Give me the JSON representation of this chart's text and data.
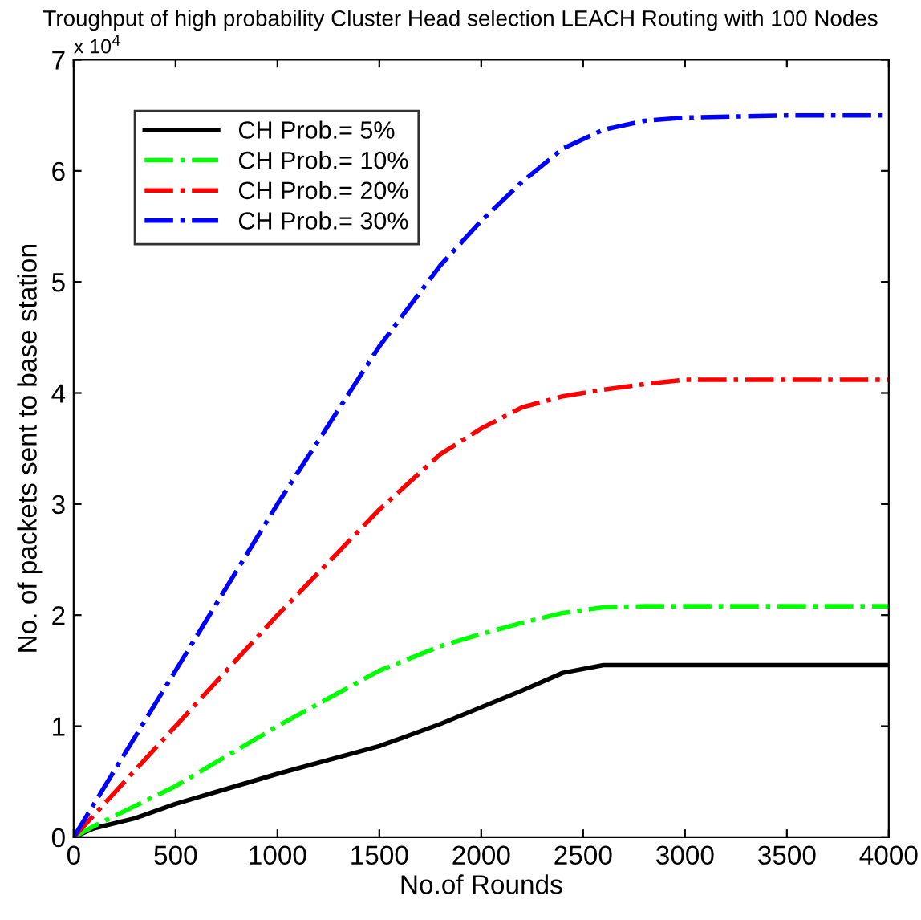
{
  "chart_data": {
    "type": "line",
    "title": "Troughput of high probability Cluster Head selection LEACH Routing with 100 Nodes",
    "xlabel": "No.of Rounds",
    "ylabel": "No. of packets sent to base station",
    "annotations": [
      "x 10$^{4}$"
    ],
    "xlim": [
      0,
      4000
    ],
    "xticks": [
      0,
      500,
      1000,
      1500,
      2000,
      2500,
      3000,
      3500,
      4000
    ],
    "ylim": [
      0,
      7
    ],
    "yticks": [
      0,
      1,
      2,
      3,
      4,
      5,
      6,
      7
    ],
    "grid": false,
    "legend": "top left",
    "marker": "none",
    "x": [
      0,
      100,
      300,
      500,
      1000,
      1500,
      1800,
      2000,
      2200,
      2400,
      2600,
      2800,
      3000,
      3500,
      4000
    ],
    "series": [
      {
        "name": "CH Prob.= 5%",
        "color": "#000000",
        "line_style": "solid",
        "values": [
          0,
          0.08,
          0.17,
          0.3,
          0.57,
          0.82,
          1.02,
          1.17,
          1.32,
          1.48,
          1.55,
          1.55,
          1.55,
          1.55,
          1.55
        ]
      },
      {
        "name": "CH Prob.= 10%",
        "color": "#00ff00",
        "line_style": "dashdot",
        "values": [
          0,
          0.1,
          0.28,
          0.46,
          1.0,
          1.5,
          1.72,
          1.83,
          1.93,
          2.02,
          2.07,
          2.08,
          2.08,
          2.08,
          2.08
        ]
      },
      {
        "name": "CH Prob.= 20%",
        "color": "#ff0000",
        "line_style": "dashdot",
        "values": [
          0,
          0.2,
          0.6,
          1.0,
          2.0,
          2.95,
          3.45,
          3.68,
          3.87,
          3.97,
          4.03,
          4.08,
          4.12,
          4.12,
          4.12
        ]
      },
      {
        "name": "CH Prob.= 30%",
        "color": "#0000ff",
        "line_style": "dashdot",
        "values": [
          0,
          0.3,
          0.9,
          1.5,
          3.0,
          4.42,
          5.15,
          5.55,
          5.9,
          6.2,
          6.37,
          6.45,
          6.48,
          6.5,
          6.5
        ]
      }
    ]
  }
}
